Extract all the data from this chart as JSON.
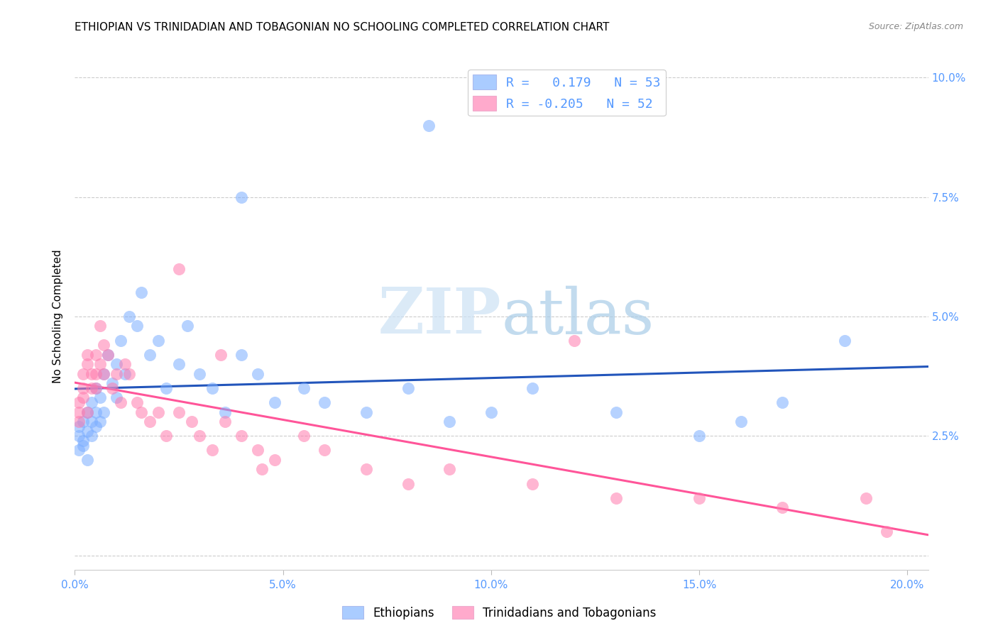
{
  "title": "ETHIOPIAN VS TRINIDADIAN AND TOBAGONIAN NO SCHOOLING COMPLETED CORRELATION CHART",
  "source": "Source: ZipAtlas.com",
  "ylabel_label": "No Schooling Completed",
  "xlim": [
    0.0,
    0.205
  ],
  "ylim": [
    -0.003,
    0.103
  ],
  "plot_xlim": [
    0.0,
    0.2
  ],
  "plot_ylim": [
    0.0,
    0.1
  ],
  "xtick_vals": [
    0.0,
    0.05,
    0.1,
    0.15,
    0.2
  ],
  "ytick_vals": [
    0.0,
    0.025,
    0.05,
    0.075,
    0.1
  ],
  "xtick_labels": [
    "0.0%",
    "5.0%",
    "10.0%",
    "15.0%",
    "20.0%"
  ],
  "ytick_labels_right": [
    "",
    "2.5%",
    "5.0%",
    "7.5%",
    "10.0%"
  ],
  "blue_color": "#7aadff",
  "pink_color": "#ff7aad",
  "blue_fill": "#aaccff",
  "pink_fill": "#ffaacc",
  "blue_line_color": "#2255bb",
  "pink_line_color": "#ff5599",
  "tick_color": "#5599ff",
  "grid_color": "#cccccc",
  "legend1_r": "R =",
  "legend1_rv": "0.179",
  "legend1_n": "N = 53",
  "legend2_r": "R = -0.205",
  "legend2_n": "N = 52",
  "label_blue": "Ethiopians",
  "label_pink": "Trinidadians and Tobagonians",
  "eth_x": [
    0.001,
    0.001,
    0.001,
    0.002,
    0.002,
    0.002,
    0.003,
    0.003,
    0.003,
    0.004,
    0.004,
    0.004,
    0.005,
    0.005,
    0.005,
    0.006,
    0.006,
    0.007,
    0.007,
    0.008,
    0.009,
    0.01,
    0.01,
    0.011,
    0.012,
    0.013,
    0.015,
    0.016,
    0.018,
    0.02,
    0.022,
    0.025,
    0.027,
    0.03,
    0.033,
    0.036,
    0.04,
    0.044,
    0.048,
    0.055,
    0.06,
    0.07,
    0.08,
    0.09,
    0.1,
    0.11,
    0.13,
    0.16,
    0.17,
    0.185,
    0.04,
    0.085,
    0.15
  ],
  "eth_y": [
    0.027,
    0.025,
    0.022,
    0.028,
    0.024,
    0.023,
    0.03,
    0.026,
    0.02,
    0.032,
    0.028,
    0.025,
    0.035,
    0.03,
    0.027,
    0.033,
    0.028,
    0.038,
    0.03,
    0.042,
    0.036,
    0.04,
    0.033,
    0.045,
    0.038,
    0.05,
    0.048,
    0.055,
    0.042,
    0.045,
    0.035,
    0.04,
    0.048,
    0.038,
    0.035,
    0.03,
    0.042,
    0.038,
    0.032,
    0.035,
    0.032,
    0.03,
    0.035,
    0.028,
    0.03,
    0.035,
    0.03,
    0.028,
    0.032,
    0.045,
    0.075,
    0.09,
    0.025
  ],
  "tri_x": [
    0.001,
    0.001,
    0.001,
    0.002,
    0.002,
    0.002,
    0.003,
    0.003,
    0.003,
    0.004,
    0.004,
    0.005,
    0.005,
    0.005,
    0.006,
    0.006,
    0.007,
    0.007,
    0.008,
    0.009,
    0.01,
    0.011,
    0.012,
    0.013,
    0.015,
    0.016,
    0.018,
    0.02,
    0.022,
    0.025,
    0.028,
    0.03,
    0.033,
    0.036,
    0.04,
    0.044,
    0.048,
    0.055,
    0.06,
    0.07,
    0.08,
    0.09,
    0.11,
    0.13,
    0.15,
    0.17,
    0.19,
    0.195,
    0.025,
    0.035,
    0.045,
    0.12
  ],
  "tri_y": [
    0.03,
    0.032,
    0.028,
    0.035,
    0.038,
    0.033,
    0.04,
    0.042,
    0.03,
    0.038,
    0.035,
    0.042,
    0.038,
    0.035,
    0.048,
    0.04,
    0.044,
    0.038,
    0.042,
    0.035,
    0.038,
    0.032,
    0.04,
    0.038,
    0.032,
    0.03,
    0.028,
    0.03,
    0.025,
    0.03,
    0.028,
    0.025,
    0.022,
    0.028,
    0.025,
    0.022,
    0.02,
    0.025,
    0.022,
    0.018,
    0.015,
    0.018,
    0.015,
    0.012,
    0.012,
    0.01,
    0.012,
    0.005,
    0.06,
    0.042,
    0.018,
    0.045
  ]
}
